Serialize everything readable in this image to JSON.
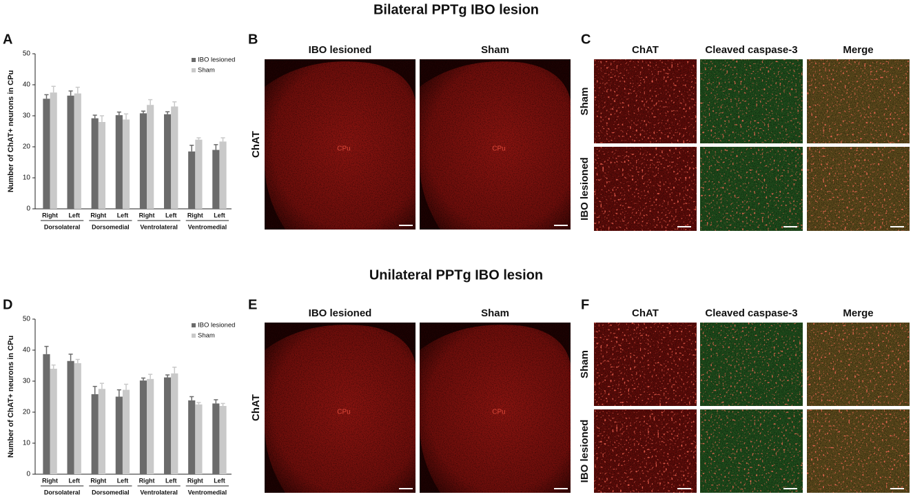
{
  "figure": {
    "headings": [
      "Bilateral PPTg IBO lesion",
      "Unilateral PPTg IBO lesion"
    ],
    "panel_letters": [
      "A",
      "B",
      "C",
      "D",
      "E",
      "F"
    ]
  },
  "image_panels": [
    {
      "columns": [
        "IBO lesioned",
        "Sham"
      ],
      "row_label": "ChAT",
      "region_labels": [
        "CPu",
        "CPu"
      ]
    },
    {
      "columns": [
        "ChAT",
        "Cleaved caspase-3",
        "Merge"
      ],
      "rows": [
        "Sham",
        "IBO lesioned"
      ]
    },
    {
      "columns": [
        "IBO lesioned",
        "Sham"
      ],
      "row_label": "ChAT",
      "region_labels": [
        "CPu",
        "CPu"
      ]
    },
    {
      "columns": [
        "ChAT",
        "Cleaved caspase-3",
        "Merge"
      ],
      "rows": [
        "Sham",
        "IBO lesioned"
      ]
    }
  ],
  "chart_data": [
    {
      "type": "bar",
      "y_label": "Number of ChAT+ neurons in CPu",
      "categories": [
        "Right",
        "Left",
        "Right",
        "Left",
        "Right",
        "Left",
        "Right",
        "Left"
      ],
      "groups": [
        "Dorsolateral",
        "Dorsomedial",
        "Ventrolateral",
        "Ventromedial"
      ],
      "series": [
        {
          "name": "IBO lesioned",
          "color": "#6b6b6b",
          "values": [
            35.5,
            36.5,
            29.2,
            30.2,
            30.8,
            30.5,
            18.5,
            19
          ],
          "errors": [
            1.3,
            1.5,
            1,
            1,
            0.7,
            0.8,
            2,
            1.7
          ]
        },
        {
          "name": "Sham",
          "color": "#c9c9c9",
          "values": [
            37.5,
            37.2,
            28,
            28.8,
            33.5,
            33,
            22.3,
            21.7
          ],
          "errors": [
            2,
            2,
            2,
            1.8,
            1.7,
            1.5,
            0.6,
            1.2
          ]
        }
      ],
      "ylim": [
        0,
        50
      ],
      "yticks": [
        0,
        10,
        20,
        30,
        40,
        50
      ],
      "legend": "upper right"
    },
    {
      "type": "bar",
      "y_label": "Number of ChAT+ neurons in CPu",
      "categories": [
        "Right",
        "Left",
        "Right",
        "Left",
        "Right",
        "Left",
        "Right",
        "Left"
      ],
      "groups": [
        "Dorsolateral",
        "Dorsomedial",
        "Ventrolateral",
        "Ventromedial"
      ],
      "series": [
        {
          "name": "IBO lesioned",
          "color": "#6b6b6b",
          "values": [
            38.7,
            36.5,
            25.8,
            25,
            30.2,
            31.2,
            23.8,
            22.8
          ],
          "errors": [
            2.5,
            2.2,
            2.5,
            2.2,
            0.8,
            0.8,
            1.2,
            1.2
          ]
        },
        {
          "name": "Sham",
          "color": "#c9c9c9",
          "values": [
            34,
            35.8,
            27.5,
            27.2,
            30.7,
            32.5,
            22.5,
            22
          ],
          "errors": [
            1.2,
            1.2,
            1.8,
            1.8,
            1.5,
            2,
            0.6,
            0.8
          ]
        }
      ],
      "ylim": [
        0,
        50
      ],
      "yticks": [
        0,
        10,
        20,
        30,
        40,
        50
      ],
      "legend": "upper right"
    }
  ]
}
